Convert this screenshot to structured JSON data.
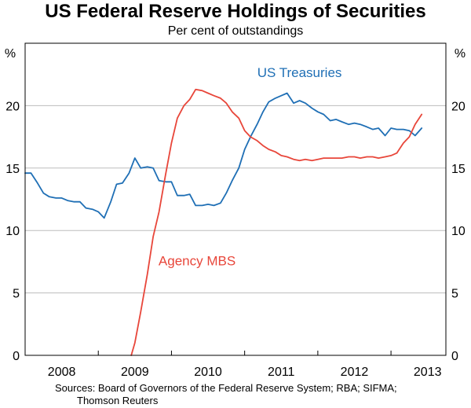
{
  "chart_data": {
    "type": "line",
    "title": "US Federal Reserve Holdings of Securities",
    "subtitle": "Per cent of outstandings",
    "ylabel_left": "%",
    "ylabel_right": "%",
    "ylim": [
      0,
      25
    ],
    "yticks": [
      0,
      5,
      10,
      15,
      20
    ],
    "ytick_labels": [
      "0",
      "5",
      "10",
      "15",
      "20"
    ],
    "xlim": [
      2007.5,
      2013.25
    ],
    "xtick_positions": [
      2007.5,
      2008.5,
      2009.5,
      2010.5,
      2011.5,
      2012.5
    ],
    "xcategory_positions": [
      2008,
      2009,
      2010,
      2011,
      2012,
      2013
    ],
    "xtick_labels": [
      "2008",
      "2009",
      "2010",
      "2011",
      "2012",
      "2013"
    ],
    "series": [
      {
        "name": "US Treasuries",
        "label": "US Treasuries",
        "color": "#1f6fb5",
        "x": [
          2007.5,
          2007.58,
          2007.67,
          2007.75,
          2007.83,
          2007.92,
          2008.0,
          2008.08,
          2008.17,
          2008.25,
          2008.33,
          2008.42,
          2008.5,
          2008.58,
          2008.67,
          2008.75,
          2008.83,
          2008.92,
          2009.0,
          2009.08,
          2009.17,
          2009.25,
          2009.33,
          2009.42,
          2009.5,
          2009.58,
          2009.67,
          2009.75,
          2009.83,
          2009.92,
          2010.0,
          2010.08,
          2010.17,
          2010.25,
          2010.33,
          2010.42,
          2010.5,
          2010.58,
          2010.67,
          2010.75,
          2010.83,
          2010.92,
          2011.0,
          2011.08,
          2011.17,
          2011.25,
          2011.33,
          2011.42,
          2011.5,
          2011.58,
          2011.67,
          2011.75,
          2011.83,
          2011.92,
          2012.0,
          2012.08,
          2012.17,
          2012.25,
          2012.33,
          2012.42,
          2012.5,
          2012.58,
          2012.67,
          2012.75,
          2012.83,
          2012.92
        ],
        "y": [
          14.6,
          14.6,
          13.8,
          13.0,
          12.7,
          12.6,
          12.6,
          12.4,
          12.3,
          12.3,
          11.8,
          11.7,
          11.5,
          11.0,
          12.3,
          13.7,
          13.8,
          14.6,
          15.8,
          15.0,
          15.1,
          15.0,
          14.0,
          13.9,
          13.9,
          12.8,
          12.8,
          12.9,
          12.0,
          12.0,
          12.1,
          12.0,
          12.2,
          13.0,
          14.0,
          15.0,
          16.5,
          17.5,
          18.5,
          19.5,
          20.3,
          20.6,
          20.8,
          21.0,
          20.2,
          20.4,
          20.2,
          19.8,
          19.5,
          19.3,
          18.8,
          18.9,
          18.7,
          18.5,
          18.6,
          18.5,
          18.3,
          18.1,
          18.2,
          17.6,
          18.2,
          18.1,
          18.1,
          18.0,
          17.6,
          18.2
        ]
      },
      {
        "name": "Agency MBS",
        "label": "Agency MBS",
        "color": "#e8463a",
        "x": [
          2008.95,
          2009.0,
          2009.08,
          2009.17,
          2009.25,
          2009.33,
          2009.42,
          2009.5,
          2009.58,
          2009.67,
          2009.75,
          2009.83,
          2009.92,
          2010.0,
          2010.08,
          2010.17,
          2010.25,
          2010.33,
          2010.42,
          2010.5,
          2010.58,
          2010.67,
          2010.75,
          2010.83,
          2010.92,
          2011.0,
          2011.08,
          2011.17,
          2011.25,
          2011.33,
          2011.42,
          2011.5,
          2011.58,
          2011.67,
          2011.75,
          2011.83,
          2011.92,
          2012.0,
          2012.08,
          2012.17,
          2012.25,
          2012.33,
          2012.42,
          2012.5,
          2012.58,
          2012.67,
          2012.75,
          2012.83,
          2012.92
        ],
        "y": [
          0.0,
          1.0,
          3.5,
          6.5,
          9.5,
          11.5,
          14.5,
          17.0,
          19.0,
          20.0,
          20.5,
          21.3,
          21.2,
          21.0,
          20.8,
          20.6,
          20.2,
          19.5,
          19.0,
          18.0,
          17.5,
          17.2,
          16.8,
          16.5,
          16.3,
          16.0,
          15.9,
          15.7,
          15.6,
          15.7,
          15.6,
          15.7,
          15.8,
          15.8,
          15.8,
          15.8,
          15.9,
          15.9,
          15.8,
          15.9,
          15.9,
          15.8,
          15.9,
          16.0,
          16.2,
          17.0,
          17.5,
          18.5,
          19.3
        ]
      }
    ],
    "annotations": [
      {
        "text": "US Treasuries",
        "series": "US Treasuries",
        "at": [
          2011.25,
          22.3
        ]
      },
      {
        "text": "Agency MBS",
        "series": "Agency MBS",
        "at": [
          2009.85,
          7.2
        ]
      }
    ],
    "grid": true,
    "legend": "inline annotations"
  },
  "source_note": {
    "line1": "Sources: Board of Governors of the Federal Reserve System; RBA; SIFMA;",
    "line2": "Thomson Reuters"
  }
}
